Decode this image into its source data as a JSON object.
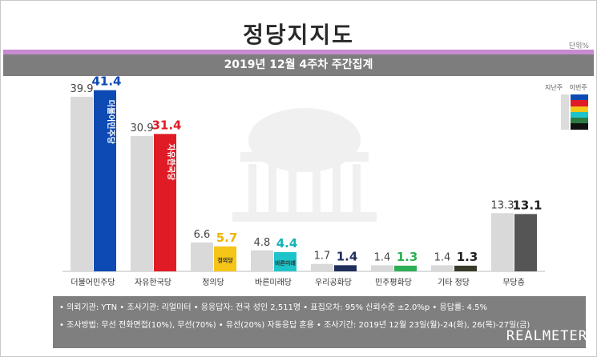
{
  "header": {
    "title": "정당지지도",
    "unit": "단위%",
    "subtitle": "2019년 12월 4주차 주간집계"
  },
  "legend": {
    "prev_label": "지난주",
    "curr_label": "이번주",
    "colors": [
      "#0d4ab4",
      "#e01b26",
      "#f5c518",
      "#1ec4c9",
      "#2b7c42",
      "#111111"
    ]
  },
  "chart_data": {
    "type": "bar",
    "categories": [
      "더불어민주당",
      "자유한국당",
      "정의당",
      "바른미래당",
      "우리공화당",
      "민주평화당",
      "기타 정당",
      "무당층"
    ],
    "series": [
      {
        "name": "지난주",
        "values": [
          39.9,
          30.9,
          6.6,
          4.8,
          1.7,
          1.4,
          1.4,
          13.3
        ]
      },
      {
        "name": "이번주",
        "values": [
          41.4,
          31.4,
          5.7,
          4.4,
          1.4,
          1.3,
          1.3,
          13.1
        ]
      }
    ],
    "prev_colors": [
      "#d9d9d9",
      "#d9d9d9",
      "#d9d9d9",
      "#d9d9d9",
      "#d9d9d9",
      "#d9d9d9",
      "#d9d9d9",
      "#d9d9d9"
    ],
    "curr_colors": [
      "#0d4ab4",
      "#e01b26",
      "#f5c518",
      "#1ec4c9",
      "#1f2f5c",
      "#2eae55",
      "#3a3a2a",
      "#555555"
    ],
    "value_colors": [
      "#0d4ab4",
      "#e01b26",
      "#f0b400",
      "#17b3b8",
      "#1f2f5c",
      "#2eae55",
      "#222222",
      "#222222"
    ],
    "bar_logos": [
      "더불어민주당",
      "자유한국당",
      "정의당",
      "바른미래",
      "",
      "",
      "",
      ""
    ],
    "ylim": [
      0,
      45
    ]
  },
  "footer": {
    "line1": "• 의뢰기관: YTN  • 조사기관: 리얼미터  • 응응답자: 전국 성인 2,511명  • 표집오차: 95% 신뢰수준 ±2.0%p  • 응답률: 4.5%",
    "line2": "• 조사방법: 무선 전화면접(10%), 무선(70%) • 유선(20%) 자동응답 혼용  • 조사기간: 2019년 12월 23일(월)-24(화), 26(목)-27일(금)",
    "brand": "REALMETER"
  }
}
